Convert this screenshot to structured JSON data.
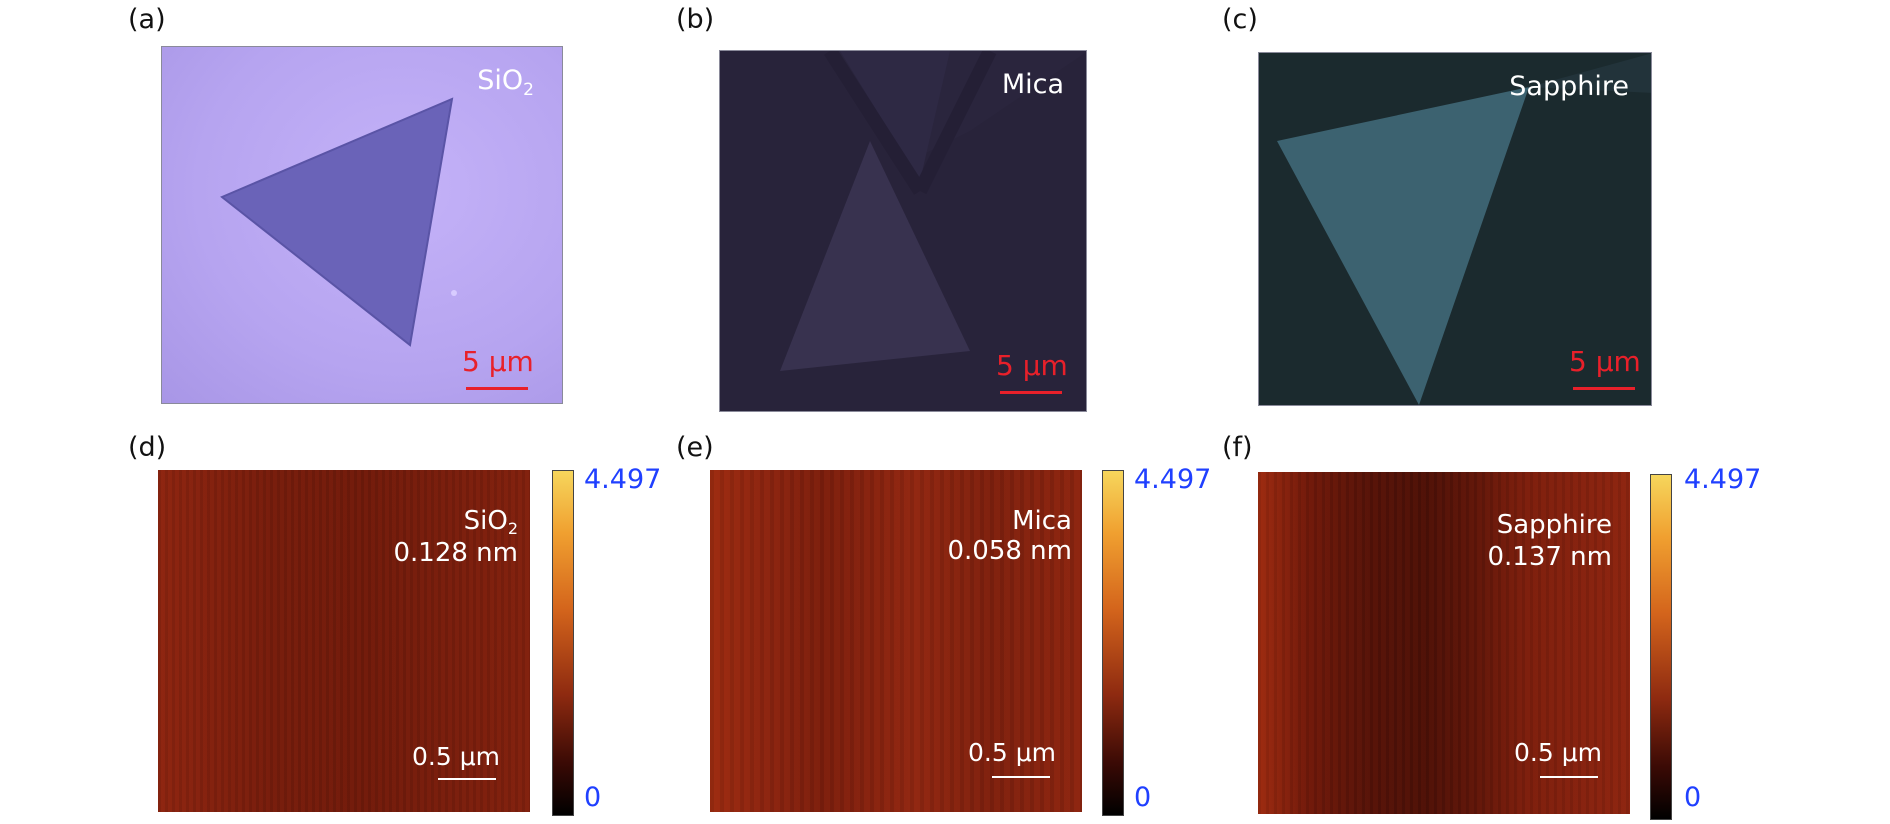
{
  "panels": [
    {
      "letter": "(a)",
      "substrate": "SiO",
      "subscript": "2",
      "scale": "5 μm"
    },
    {
      "letter": "(b)",
      "substrate": "Mica",
      "subscript": "",
      "scale": "5 μm"
    },
    {
      "letter": "(c)",
      "substrate": "Sapphire",
      "subscript": "",
      "scale": "5 μm"
    },
    {
      "letter": "(d)",
      "substrate": "SiO",
      "subscript": "2",
      "roughness": "0.128 nm",
      "scale": "0.5 μm"
    },
    {
      "letter": "(e)",
      "substrate": "Mica",
      "subscript": "",
      "roughness": "0.058 nm",
      "scale": "0.5 μm"
    },
    {
      "letter": "(f)",
      "substrate": "Sapphire",
      "subscript": "",
      "roughness": "0.137 nm",
      "scale": "0.5 μm"
    }
  ],
  "colorbar": {
    "max": "4.497",
    "min": "0"
  },
  "colors": {
    "sio2_bg": "#bba8f4",
    "sio2_flake": "#6a63b8",
    "mica_bg": "#2c2740",
    "mica_flake": "#3b3558",
    "sapphire_bg": "#1c2c30",
    "sapphire_flake": "#3d6472",
    "scale_red": "#e8202a",
    "colorbar_label": "#2040ff"
  }
}
